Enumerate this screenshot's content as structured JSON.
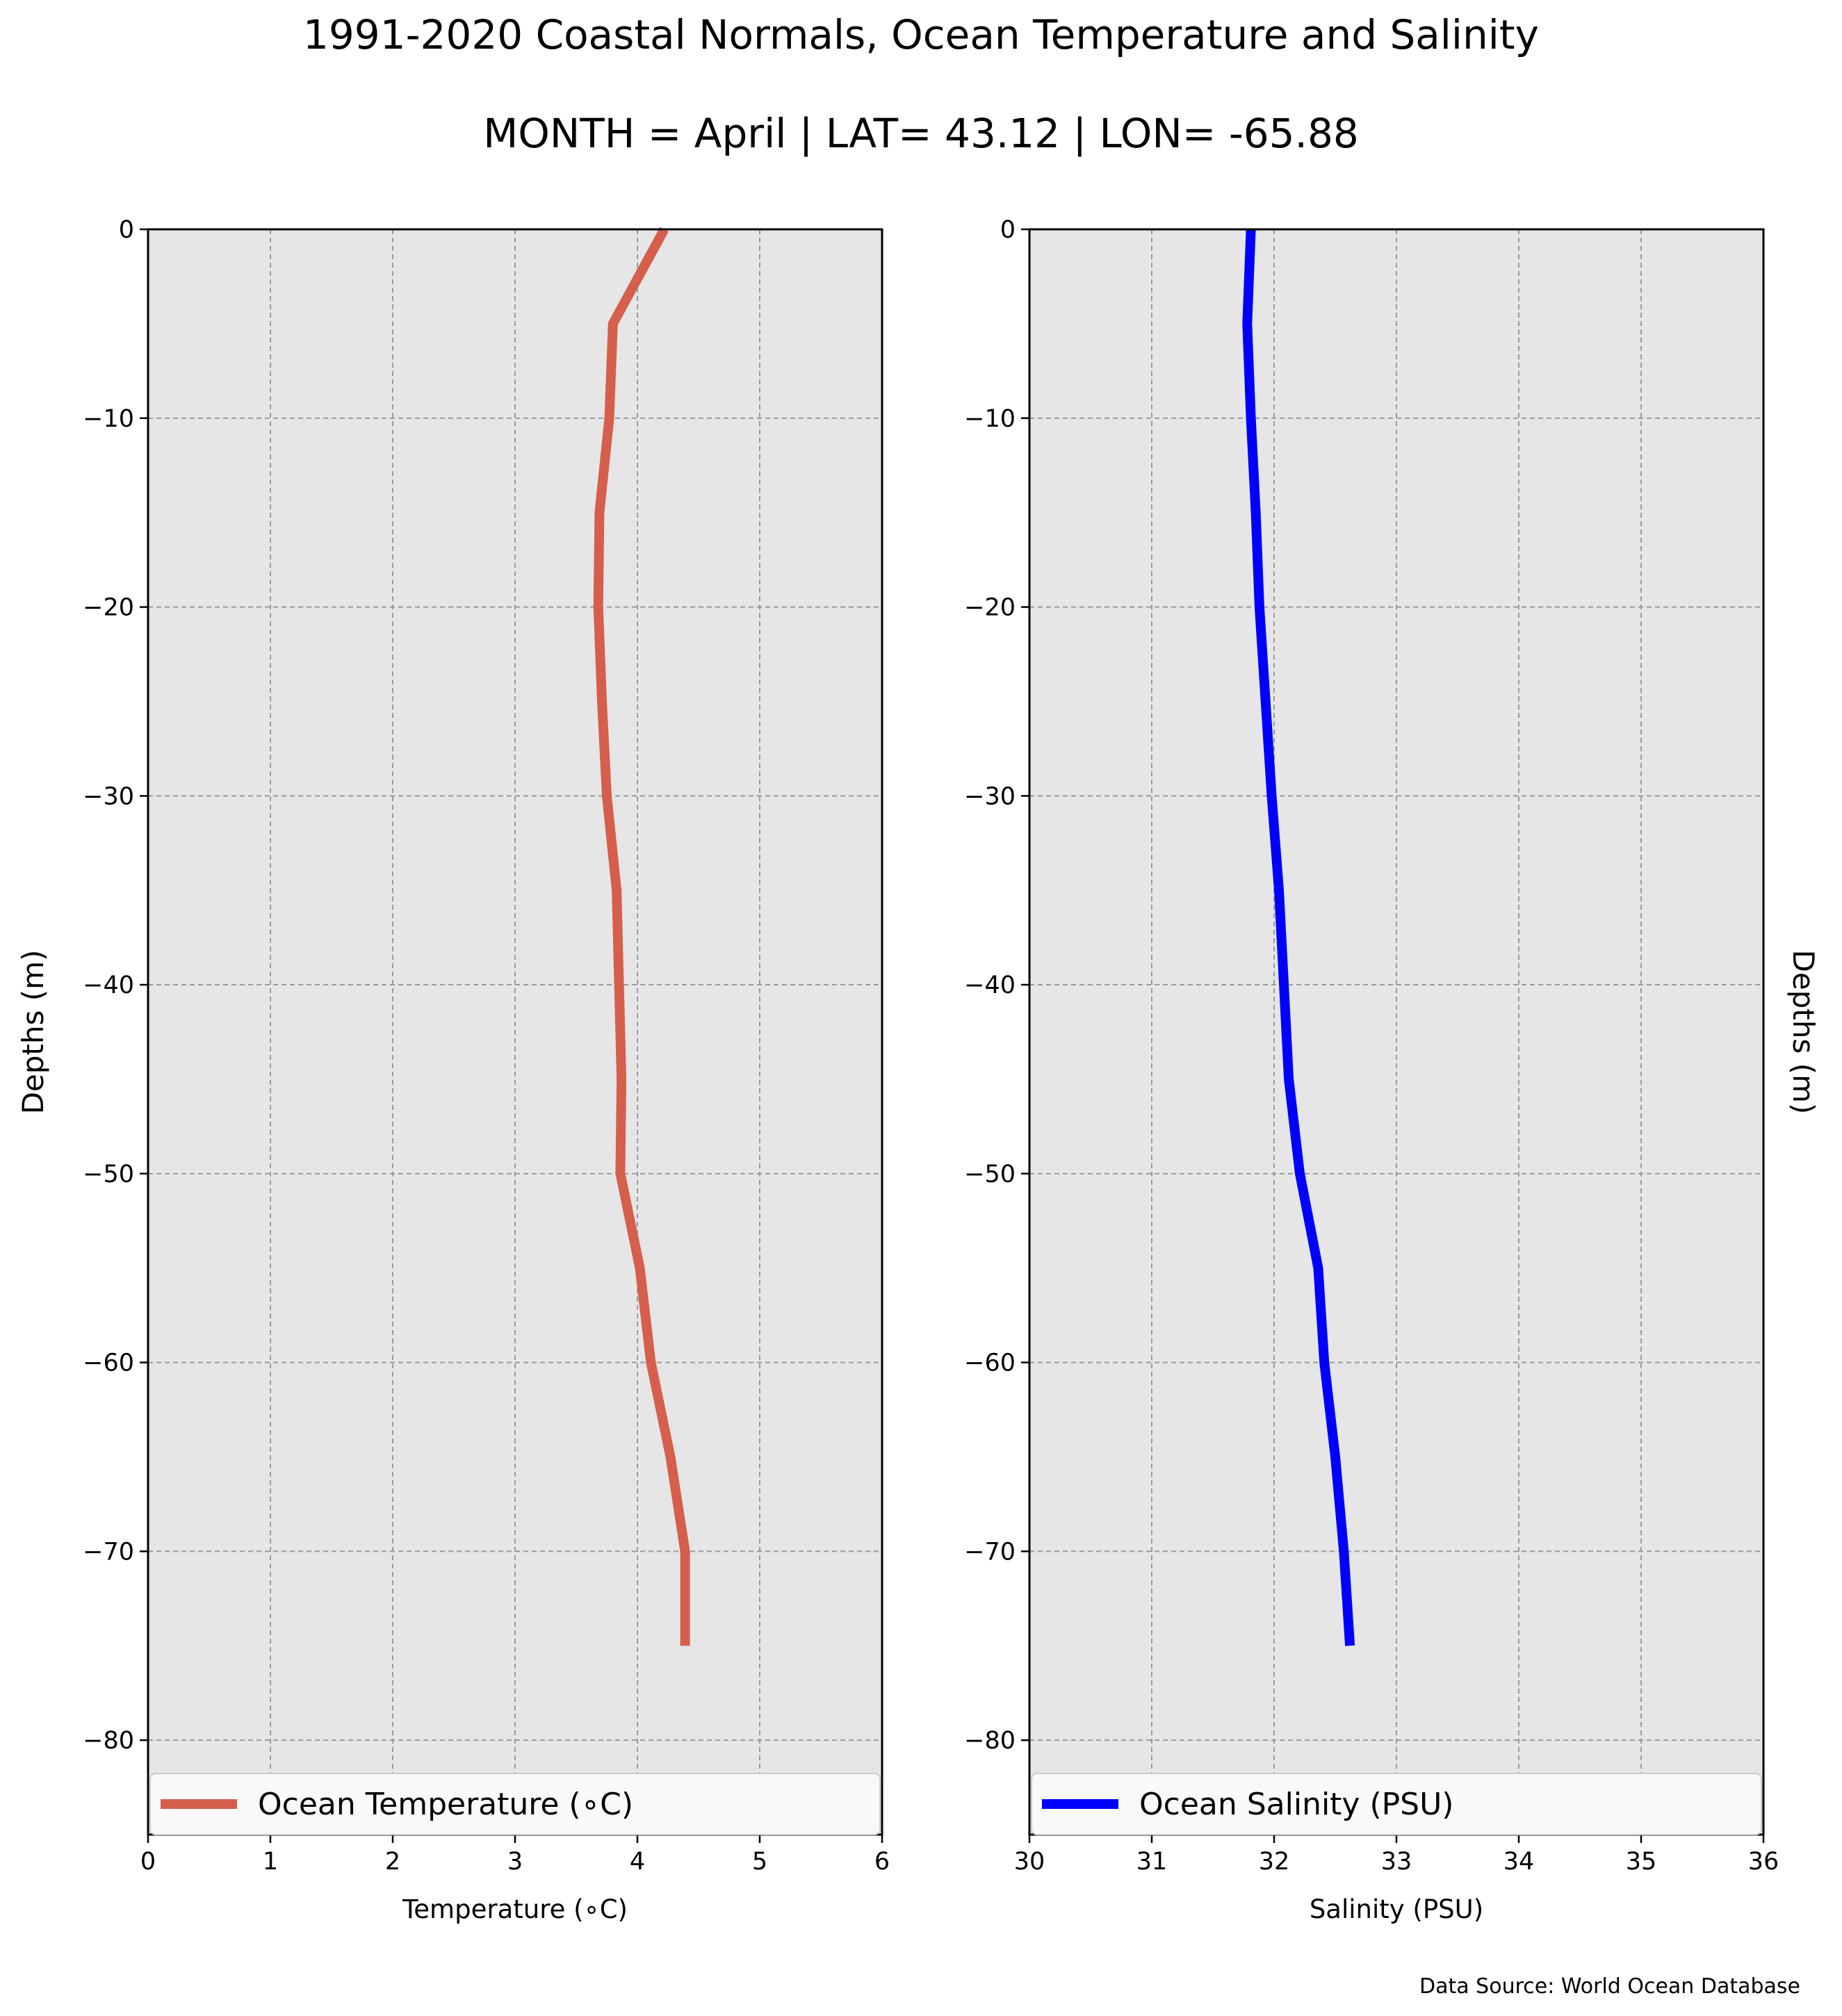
{
  "figure": {
    "title": "1991-2020 Coastal Normals, Ocean Temperature and Salinity",
    "subtitle": "MONTH = April | LAT= 43.12 | LON= -65.88",
    "source_note": "Data Source: World Ocean Database"
  },
  "colors": {
    "axes_background": "#e6e6e6",
    "grid": "#9a9a9a",
    "temperature_line": "#d55f4c",
    "salinity_line": "#0000ff"
  },
  "chart_data": [
    {
      "type": "line",
      "xlabel": "Temperature (∘C)",
      "ylabel": "Depths (m)",
      "ylabel_side": "left",
      "xlim": [
        0,
        6
      ],
      "ylim": [
        -85,
        0
      ],
      "xticks": [
        0,
        1,
        2,
        3,
        4,
        5,
        6
      ],
      "yticks": [
        0,
        -10,
        -20,
        -30,
        -40,
        -50,
        -60,
        -70,
        -80
      ],
      "grid": true,
      "legend_position": "bottom",
      "series": [
        {
          "name": "Ocean Temperature (∘C)",
          "color": "#d55f4c",
          "x": [
            4.22,
            3.8,
            3.77,
            3.69,
            3.68,
            3.71,
            3.75,
            3.83,
            3.87,
            3.86,
            4.02,
            4.11,
            4.27,
            4.39,
            4.39
          ],
          "y": [
            0,
            -5,
            -10,
            -15,
            -20,
            -25,
            -30,
            -35,
            -45,
            -50,
            -55,
            -60,
            -65,
            -70,
            -75
          ]
        }
      ]
    },
    {
      "type": "line",
      "xlabel": "Salinity (PSU)",
      "ylabel": "Depths (m)",
      "ylabel_side": "right",
      "xlim": [
        30,
        36
      ],
      "ylim": [
        -85,
        0
      ],
      "xticks": [
        30,
        31,
        32,
        33,
        34,
        35,
        36
      ],
      "yticks": [
        0,
        -10,
        -20,
        -30,
        -40,
        -50,
        -60,
        -70,
        -80
      ],
      "grid": true,
      "legend_position": "bottom",
      "series": [
        {
          "name": "Ocean Salinity (PSU)",
          "color": "#0000ff",
          "x": [
            31.81,
            31.78,
            31.81,
            31.85,
            31.88,
            31.93,
            31.98,
            32.04,
            32.12,
            32.21,
            32.36,
            32.41,
            32.5,
            32.57,
            32.62
          ],
          "y": [
            0,
            -5,
            -10,
            -15,
            -20,
            -25,
            -30,
            -35,
            -45,
            -50,
            -55,
            -60,
            -65,
            -70,
            -75
          ]
        }
      ]
    }
  ]
}
